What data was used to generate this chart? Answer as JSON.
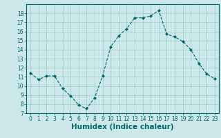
{
  "x": [
    0,
    1,
    2,
    3,
    4,
    5,
    6,
    7,
    8,
    9,
    10,
    11,
    12,
    13,
    14,
    15,
    16,
    17,
    18,
    19,
    20,
    21,
    22,
    23
  ],
  "y": [
    11.4,
    10.7,
    11.1,
    11.1,
    9.7,
    8.9,
    7.9,
    7.5,
    8.7,
    11.1,
    14.3,
    15.5,
    16.3,
    17.5,
    17.5,
    17.7,
    18.3,
    15.7,
    15.4,
    14.9,
    14.0,
    12.5,
    11.3,
    10.8
  ],
  "line_color": "#006666",
  "marker": "D",
  "marker_size": 2,
  "bg_color": "#cce8e8",
  "grid_color": "#99cccc",
  "xlabel": "Humidex (Indice chaleur)",
  "ylim": [
    7,
    19
  ],
  "xlim": [
    -0.5,
    23.5
  ],
  "yticks": [
    7,
    8,
    9,
    10,
    11,
    12,
    13,
    14,
    15,
    16,
    17,
    18
  ],
  "xticks": [
    0,
    1,
    2,
    3,
    4,
    5,
    6,
    7,
    8,
    9,
    10,
    11,
    12,
    13,
    14,
    15,
    16,
    17,
    18,
    19,
    20,
    21,
    22,
    23
  ],
  "tick_label_fontsize": 5.5,
  "xlabel_fontsize": 7.5
}
